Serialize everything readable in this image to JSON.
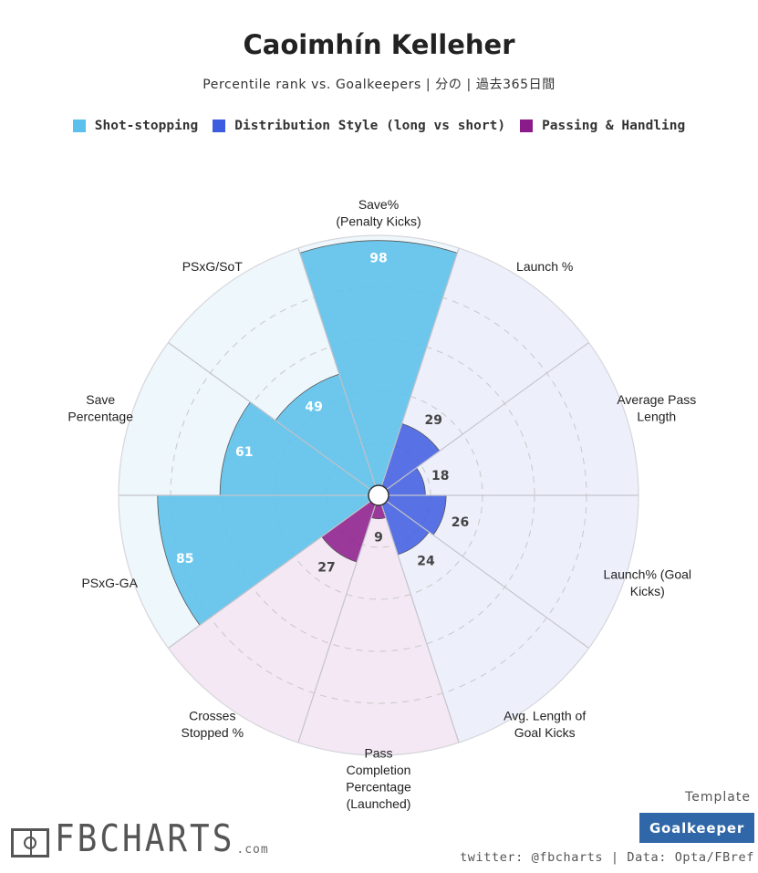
{
  "header": {
    "title": "Caoimhín Kelleher",
    "subtitle": "Percentile rank vs. Goalkeepers | 分の | 過去365日間"
  },
  "legend": [
    {
      "label": "Shot-stopping",
      "color": "#5bc0eb"
    },
    {
      "label": "Distribution Style (long vs short)",
      "color": "#3d5ce0"
    },
    {
      "label": "Passing & Handling",
      "color": "#8b1a8b"
    }
  ],
  "chart_data": {
    "type": "polar-bar",
    "rlim": [
      0,
      100
    ],
    "grid": true,
    "legend_position": "top",
    "categories": [
      "Save%\n(Penalty Kicks)",
      "Launch %",
      "Average Pass\nLength",
      "Launch% (Goal\nKicks)",
      "Avg. Length of\nGoal Kicks",
      "Pass\nCompletion\nPercentage\n(Launched)",
      "Crosses\nStopped %",
      "PSxG-GA",
      "Save\nPercentage",
      "PSxG/SoT"
    ],
    "values": [
      98,
      29,
      18,
      26,
      24,
      9,
      27,
      85,
      61,
      49
    ],
    "groups": [
      "Shot-stopping",
      "Distribution Style (long vs short)",
      "Distribution Style (long vs short)",
      "Distribution Style (long vs short)",
      "Distribution Style (long vs short)",
      "Passing & Handling",
      "Passing & Handling",
      "Shot-stopping",
      "Shot-stopping",
      "Shot-stopping"
    ],
    "group_colors": {
      "Shot-stopping": {
        "bar": "#5bc0eb",
        "background": "#eef7fb",
        "label": "#ffffff"
      },
      "Distribution Style (long vs short)": {
        "bar": "#3d5ce0",
        "background": "#edf0fb",
        "label": "#444444"
      },
      "Passing & Handling": {
        "bar": "#8b1a8b",
        "background": "#f3e8f3",
        "label": "#444444"
      }
    }
  },
  "footer": {
    "template_caption": "Template",
    "template_name": "Goalkeeper",
    "credit": "twitter: @fbcharts | Data: Opta/FBref",
    "logo_text": "FBCHARTS",
    "logo_suffix": ".com"
  }
}
